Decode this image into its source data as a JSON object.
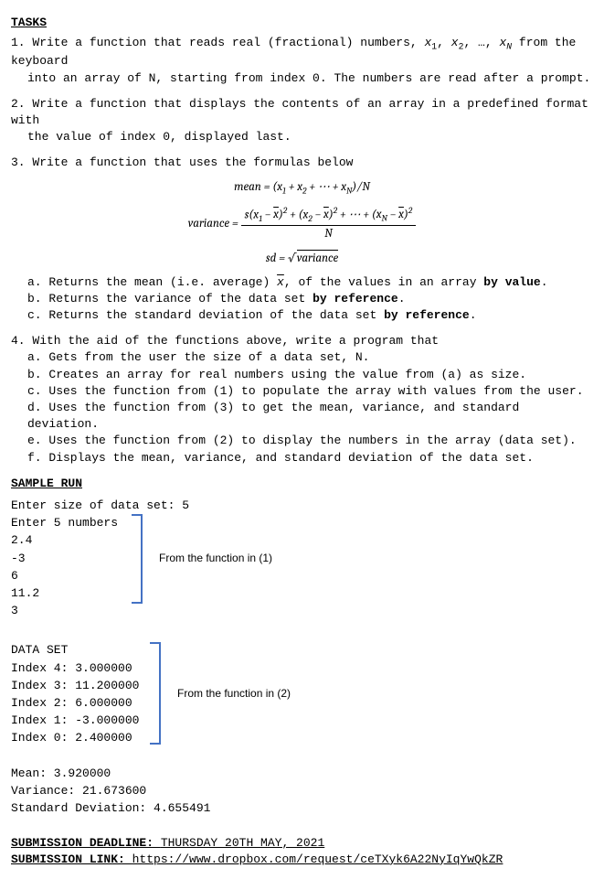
{
  "tasks_heading": "TASKS",
  "task1": "1. Write a function that reads real (fractional) numbers, x₁, x₂, …, xₙ from the keyboard into an array of N, starting from index 0. The numbers are read after a prompt.",
  "task2": "2. Write a function that displays the contents of an array in a predefined format with the value of index 0, displayed last.",
  "task3_intro": "3. Write a function that uses the formulas below",
  "mean_label": "mean = ",
  "mean_expr": "(x₁ + x₂ + ⋯ + xₙ)/N",
  "variance_label": "variance = ",
  "variance_num": "s(x₁ − x̄)² + (x₂ − x̄)² + ⋯ + (xₙ − x̄)²",
  "variance_den": "N",
  "sd_label": "sd = ",
  "sd_expr": "√variance",
  "task3a_pre": "a. Returns the mean (i.e. average) ",
  "task3a_mid": ", of the values in an array ",
  "task3a_bold": "by value",
  "task3a_end": ".",
  "task3b_pre": "b. Returns the variance of the data set ",
  "task3b_bold": "by reference",
  "task3b_end": ".",
  "task3c_pre": "c. Returns the standard deviation of the data set ",
  "task3c_bold": "by reference",
  "task3c_end": ".",
  "task4_intro": "4. With the aid of the functions above, write a program that",
  "task4a": "a. Gets from the user the size of a data set, N.",
  "task4b": "b. Creates an array for real numbers using the value from (a) as size.",
  "task4c": "c. Uses the function from (1) to populate the array with values from the user.",
  "task4d": "d. Uses the function from (3) to get the mean, variance, and standard deviation.",
  "task4e": "e. Uses the function from (2) to display the numbers in the array (data set).",
  "task4f": "f. Displays the mean, variance, and standard deviation of the data set.",
  "sample_heading": "SAMPLE RUN",
  "enter_size": "Enter size of data set: 5",
  "enter_nums": "Enter 5 numbers",
  "inputs": [
    "2.4",
    "-3",
    "6",
    "11.2",
    "3"
  ],
  "bracket1_label": "From the function in (1)",
  "dataset_heading": "DATA SET",
  "dataset_rows": [
    "Index 4: 3.000000",
    "Index 3: 11.200000",
    "Index 2: 6.000000",
    "Index 1: -3.000000",
    "Index 0: 2.400000"
  ],
  "bracket2_label": "From the function in (2)",
  "mean_out": "Mean: 3.920000",
  "var_out": "Variance: 21.673600",
  "sd_out": "Standard Deviation: 4.655491",
  "deadline_label": "SUBMISSION DEADLINE: ",
  "deadline_value": "THURSDAY 20TH MAY, 2021",
  "link_label": "SUBMISSION LINK: ",
  "link_url": "https://www.dropbox.com/request/ceTXyk6A22NyIqYwQkZR",
  "colors": {
    "text": "#000000",
    "background": "#ffffff",
    "bracket": "#4472c4"
  }
}
